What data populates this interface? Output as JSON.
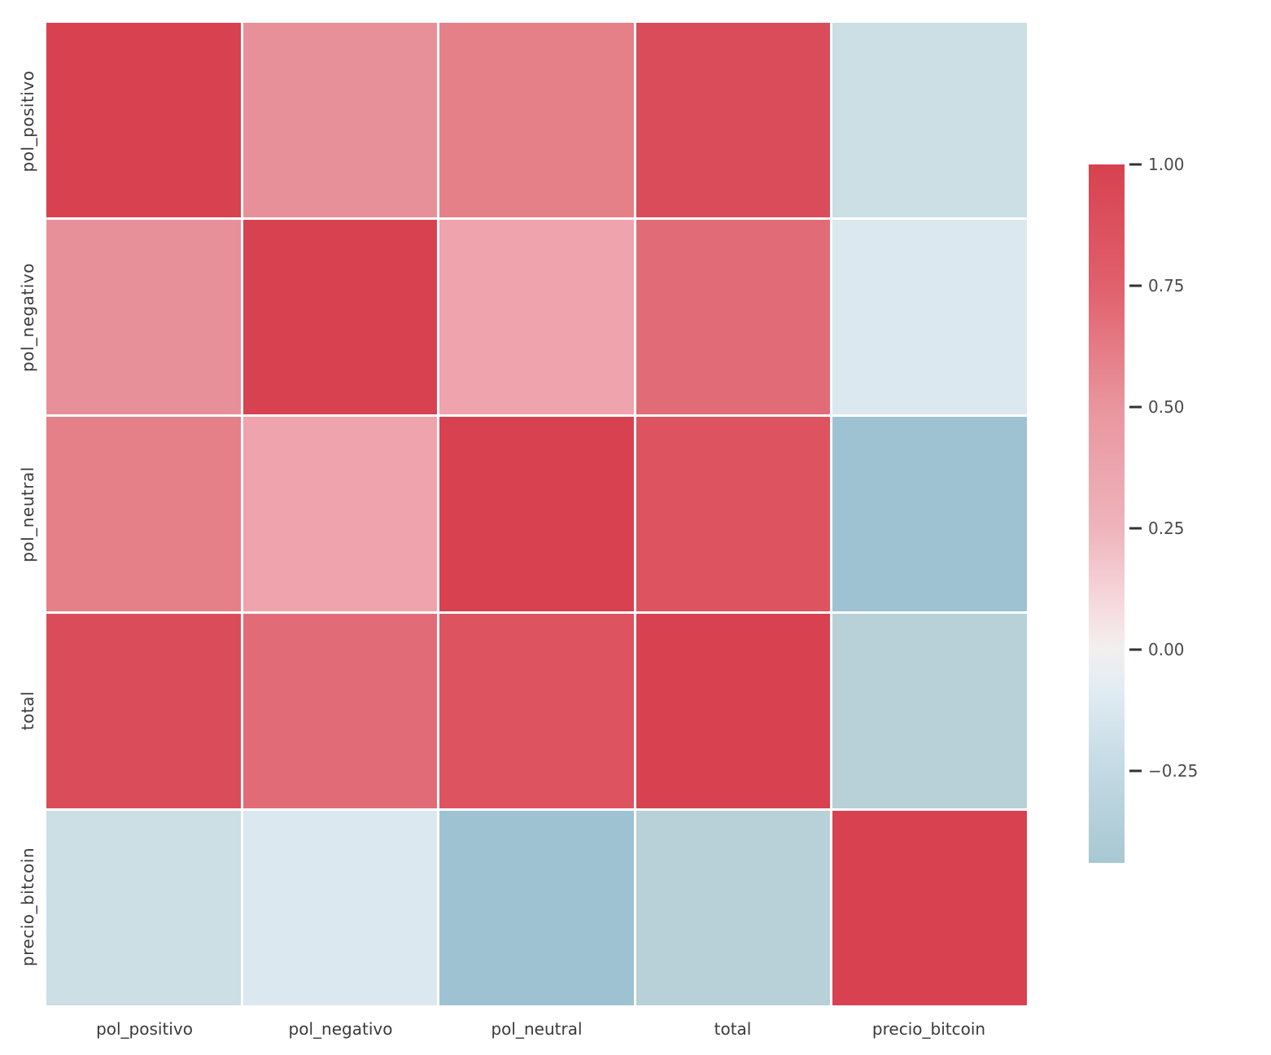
{
  "chart_data": {
    "type": "heatmap",
    "title": "",
    "xlabel": "",
    "ylabel": "",
    "categories": [
      "pol_positivo",
      "pol_negativo",
      "pol_neutral",
      "total",
      "precio_bitcoin"
    ],
    "matrix": [
      [
        1.0,
        0.5,
        0.57,
        0.93,
        -0.2
      ],
      [
        0.5,
        1.0,
        0.42,
        0.7,
        -0.08
      ],
      [
        0.57,
        0.42,
        1.0,
        0.8,
        -0.43
      ],
      [
        0.93,
        0.7,
        0.8,
        1.0,
        -0.28
      ],
      [
        -0.2,
        -0.08,
        -0.43,
        -0.28,
        1.0
      ]
    ],
    "cell_colors": [
      [
        "#d8414f",
        "#e8909a",
        "#e57f88",
        "#da4c59",
        "#cbdfe4"
      ],
      [
        "#e8909a",
        "#d8414f",
        "#efa3ac",
        "#e16c77",
        "#dce8ef"
      ],
      [
        "#e57f88",
        "#efa3ac",
        "#d8414f",
        "#dd5360",
        "#9fc2d2"
      ],
      [
        "#da4c59",
        "#e16c77",
        "#dd5360",
        "#d8414f",
        "#b8d0d8"
      ],
      [
        "#cbdfe4",
        "#dce8ef",
        "#9fc2d2",
        "#b8d0d8",
        "#d8414f"
      ]
    ],
    "grid_line_color": "#ffffff",
    "label_color": "#3a3a3a",
    "legend_position": "right",
    "colorbar": {
      "vmax": 1.0,
      "vmin": -0.44,
      "tick_labels": [
        "1.00",
        "0.75",
        "0.50",
        "0.25",
        "0.00",
        "−0.25"
      ],
      "tick_values": [
        1.0,
        0.75,
        0.5,
        0.25,
        0.0,
        -0.25
      ],
      "gradient_stops": [
        {
          "pos": 0.0,
          "color": "#d8414f"
        },
        {
          "pos": 0.174,
          "color": "#e0606c"
        },
        {
          "pos": 0.347,
          "color": "#e9959e"
        },
        {
          "pos": 0.521,
          "color": "#eeb4bc"
        },
        {
          "pos": 0.64,
          "color": "#f6dde0"
        },
        {
          "pos": 0.694,
          "color": "#f2f0ef"
        },
        {
          "pos": 0.75,
          "color": "#e2ecf3"
        },
        {
          "pos": 0.868,
          "color": "#c3d9e3"
        },
        {
          "pos": 1.0,
          "color": "#a7c8d2"
        }
      ]
    }
  }
}
